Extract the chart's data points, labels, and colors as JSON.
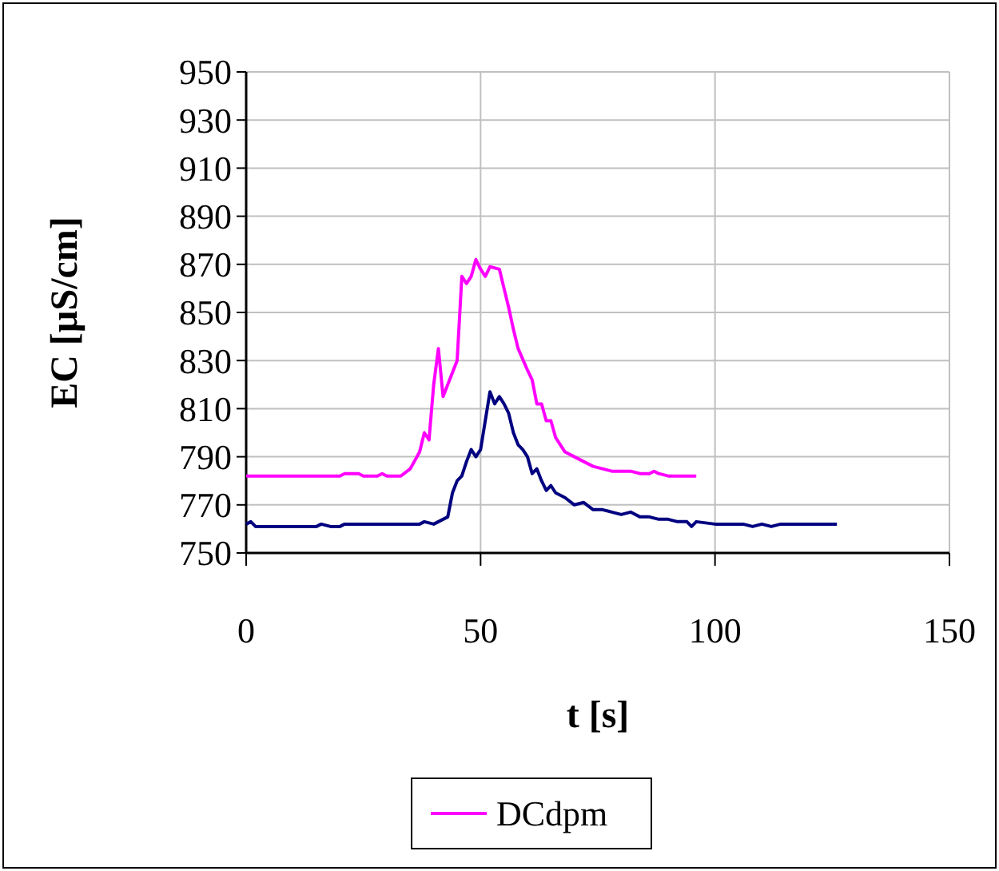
{
  "chart_data": {
    "type": "line",
    "xlabel": "t [s]",
    "ylabel": "EC [µS/cm]",
    "xlim": [
      0,
      150
    ],
    "xticks": [
      0,
      50,
      100,
      150
    ],
    "ylim": [
      750,
      950
    ],
    "yticks": [
      750,
      770,
      790,
      810,
      830,
      850,
      870,
      890,
      910,
      930,
      950
    ],
    "grid": true,
    "legend": "bottom",
    "marker": "none",
    "line_style": "solid",
    "series": [
      {
        "color": "#000080",
        "x": [
          0,
          1,
          2,
          15,
          16,
          18,
          20,
          21,
          30,
          37,
          38,
          40,
          42,
          43,
          44,
          45,
          46,
          47,
          48,
          49,
          50,
          51,
          52,
          53,
          54,
          55,
          56,
          57,
          58,
          59,
          60,
          61,
          62,
          63,
          64,
          65,
          66,
          68,
          70,
          72,
          74,
          76,
          78,
          80,
          82,
          84,
          86,
          88,
          90,
          92,
          94,
          95,
          96,
          100,
          106,
          108,
          110,
          112,
          114,
          116,
          118,
          126
        ],
        "values": [
          762,
          763,
          761,
          761,
          762,
          761,
          761,
          762,
          762,
          762,
          763,
          762,
          764,
          765,
          775,
          780,
          782,
          788,
          793,
          790,
          793,
          805,
          817,
          812,
          815,
          812,
          808,
          800,
          795,
          793,
          790,
          783,
          785,
          780,
          776,
          778,
          775,
          773,
          770,
          771,
          768,
          768,
          767,
          766,
          767,
          765,
          765,
          764,
          764,
          763,
          763,
          761,
          763,
          762,
          762,
          761,
          762,
          761,
          762,
          762,
          762,
          762
        ]
      },
      {
        "name": "DCdpm",
        "color": "#ff00ff",
        "x": [
          0,
          20,
          21,
          24,
          25,
          28,
          29,
          30,
          33,
          35,
          37,
          38,
          39,
          40,
          41,
          42,
          43,
          44,
          45,
          46,
          47,
          48,
          49,
          50,
          51,
          52,
          54,
          55,
          56,
          57,
          58,
          60,
          61,
          62,
          63,
          64,
          65,
          66,
          67,
          68,
          70,
          72,
          74,
          76,
          78,
          80,
          82,
          84,
          86,
          87,
          88,
          90,
          96
        ],
        "values": [
          782,
          782,
          783,
          783,
          782,
          782,
          783,
          782,
          782,
          785,
          792,
          800,
          797,
          820,
          835,
          815,
          820,
          825,
          830,
          865,
          862,
          865,
          872,
          868,
          865,
          869,
          868,
          860,
          852,
          843,
          835,
          826,
          822,
          812,
          812,
          805,
          805,
          798,
          795,
          792,
          790,
          788,
          786,
          785,
          784,
          784,
          784,
          783,
          783,
          784,
          783,
          782,
          782
        ]
      }
    ]
  }
}
